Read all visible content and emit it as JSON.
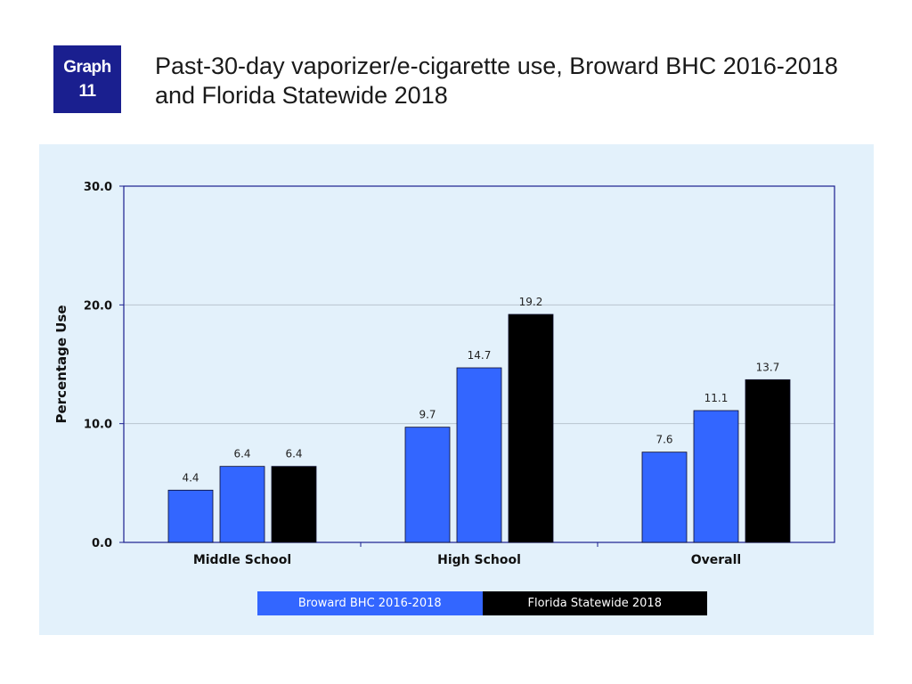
{
  "badge": {
    "line1": "Graph",
    "line2": "11"
  },
  "title": {
    "line1": "Past-30-day vaporizer/e-cigarette use, Broward BHC 2016-2018",
    "line2": "and Florida Statewide 2018"
  },
  "colors": {
    "badge": "#1a1f8f",
    "panel": "#e3f1fb",
    "broward": "#3366ff",
    "florida": "#000000",
    "axis": "#1a1f8f"
  },
  "legend": [
    {
      "label": "Broward BHC 2016-2018",
      "color": "#3366ff"
    },
    {
      "label": "Florida Statewide 2018",
      "color": "#000000"
    }
  ],
  "chart_data": {
    "type": "bar",
    "title": "",
    "xlabel": "",
    "ylabel": "Percentage Use",
    "ylim": [
      0,
      30
    ],
    "yticks": [
      "0.0",
      "10.0",
      "20.0",
      "30.0"
    ],
    "grid": true,
    "legend_position": "bottom",
    "categories": [
      "Middle School",
      "High School",
      "Overall"
    ],
    "bars_per_category": [
      [
        {
          "value": 4.4,
          "label": "4.4",
          "series": "Broward BHC 2016-2018"
        },
        {
          "value": 6.4,
          "label": "6.4",
          "series": "Broward BHC 2016-2018"
        },
        {
          "value": 6.4,
          "label": "6.4",
          "series": "Florida Statewide 2018"
        }
      ],
      [
        {
          "value": 9.7,
          "label": "9.7",
          "series": "Broward BHC 2016-2018"
        },
        {
          "value": 14.7,
          "label": "14.7",
          "series": "Broward BHC 2016-2018"
        },
        {
          "value": 19.2,
          "label": "19.2",
          "series": "Florida Statewide 2018"
        }
      ],
      [
        {
          "value": 7.6,
          "label": "7.6",
          "series": "Broward BHC 2016-2018"
        },
        {
          "value": 11.1,
          "label": "11.1",
          "series": "Broward BHC 2016-2018"
        },
        {
          "value": 13.7,
          "label": "13.7",
          "series": "Florida Statewide 2018"
        }
      ]
    ]
  }
}
